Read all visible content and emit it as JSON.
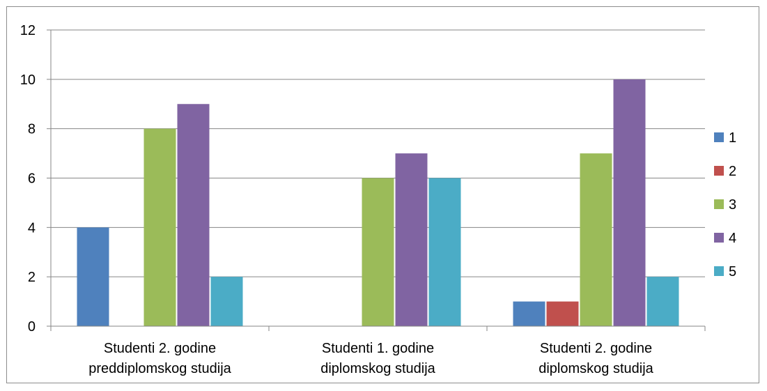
{
  "chart_data": {
    "type": "bar",
    "title": "",
    "xlabel": "",
    "ylabel": "",
    "categories": [
      [
        "Studenti 2. godine",
        "preddiplomskog studija"
      ],
      [
        "Studenti 1. godine",
        "diplomskog studija"
      ],
      [
        "Studenti 2. godine",
        "diplomskog studija"
      ]
    ],
    "series": [
      {
        "name": "1",
        "color": "#4f81bd",
        "values": [
          4,
          0,
          1
        ]
      },
      {
        "name": "2",
        "color": "#c0504d",
        "values": [
          0,
          0,
          1
        ]
      },
      {
        "name": "3",
        "color": "#9bbb59",
        "values": [
          8,
          6,
          7
        ]
      },
      {
        "name": "4",
        "color": "#8064a2",
        "values": [
          9,
          7,
          10
        ]
      },
      {
        "name": "5",
        "color": "#4bacc6",
        "values": [
          2,
          6,
          2
        ]
      }
    ],
    "ylim": [
      0,
      12
    ],
    "yticks": [
      0,
      2,
      4,
      6,
      8,
      10,
      12
    ],
    "grid": true,
    "legend": "right",
    "gridline_color": "#868686",
    "axis_color": "#868686"
  }
}
